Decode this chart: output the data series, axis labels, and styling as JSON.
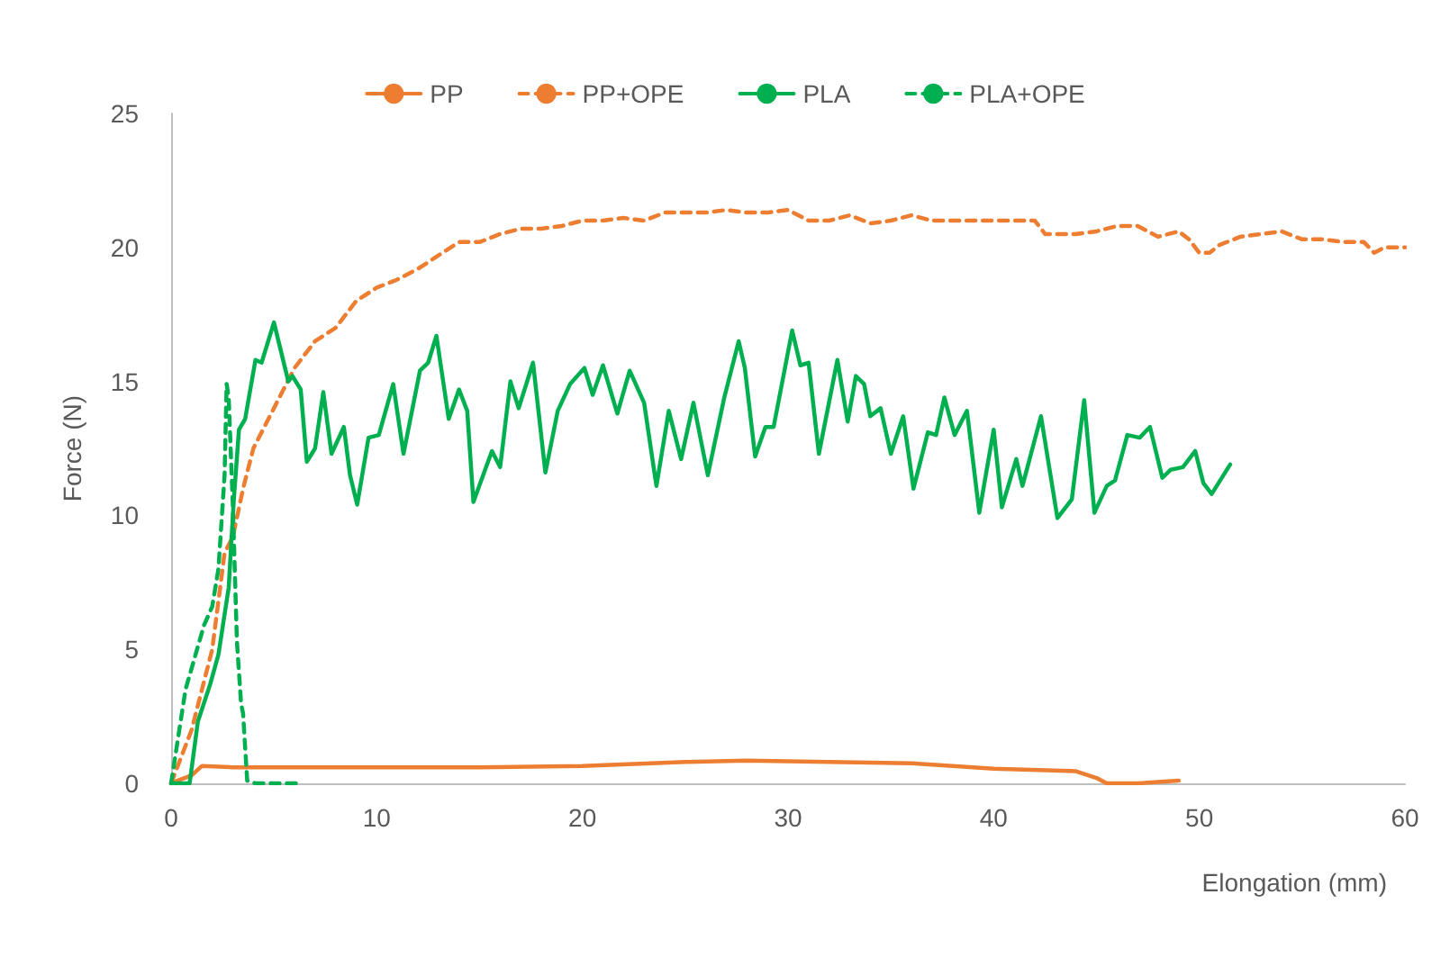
{
  "chart_data": {
    "type": "line",
    "xlabel": "Elongation (mm)",
    "ylabel": "Force (N)",
    "xlim": [
      0,
      60
    ],
    "xticks": [
      0,
      10,
      20,
      30,
      40,
      50,
      60
    ],
    "ylim": [
      0,
      25
    ],
    "yticks": [
      0,
      5,
      10,
      15,
      20,
      25
    ],
    "grid": false,
    "legend": "top",
    "series": [
      {
        "name": "PP",
        "color": "#ed7d31",
        "line_style": "solid",
        "x": [
          0,
          0.3,
          1,
          1.5,
          3,
          5,
          10,
          15,
          20,
          25,
          28,
          32,
          36,
          40,
          44,
          45,
          45.5,
          47,
          49
        ],
        "values": [
          0,
          0.1,
          0.3,
          0.65,
          0.6,
          0.6,
          0.6,
          0.6,
          0.65,
          0.8,
          0.85,
          0.8,
          0.75,
          0.55,
          0.45,
          0.2,
          0,
          0,
          0.1
        ]
      },
      {
        "name": "PP+OPE",
        "color": "#ed7d31",
        "line_style": "dashed",
        "x": [
          0,
          1,
          2,
          2.6,
          3,
          3.5,
          4,
          5,
          6,
          7,
          8,
          9,
          10,
          11,
          12,
          13,
          14,
          15,
          16,
          17,
          18,
          19,
          20,
          21,
          22,
          23,
          24,
          25,
          26,
          27,
          28,
          29,
          30,
          31,
          32,
          33,
          34,
          35,
          36,
          37,
          38,
          39,
          40,
          41,
          42,
          42.5,
          43,
          44,
          45,
          46,
          47,
          48,
          49,
          49.5,
          50,
          50.5,
          51,
          52,
          53,
          54,
          55,
          56,
          57,
          58,
          58.5,
          59,
          60
        ],
        "values": [
          0,
          2,
          5,
          8.6,
          9.2,
          11,
          12.5,
          14,
          15.5,
          16.5,
          17,
          18,
          18.5,
          18.8,
          19.2,
          19.7,
          20.2,
          20.2,
          20.5,
          20.7,
          20.7,
          20.8,
          21,
          21,
          21.1,
          21,
          21.3,
          21.3,
          21.3,
          21.4,
          21.3,
          21.3,
          21.4,
          21,
          21,
          21.2,
          20.9,
          21,
          21.2,
          21,
          21,
          21,
          21,
          21,
          21,
          20.5,
          20.5,
          20.5,
          20.6,
          20.8,
          20.8,
          20.4,
          20.6,
          20.3,
          19.8,
          19.8,
          20.1,
          20.4,
          20.5,
          20.6,
          20.3,
          20.3,
          20.2,
          20.2,
          19.8,
          20,
          20
        ]
      },
      {
        "name": "PLA",
        "color": "#00b050",
        "line_style": "solid",
        "x": [
          0,
          0.9,
          1.3,
          1.9,
          2.3,
          2.8,
          3.05,
          3.3,
          3.6,
          4.1,
          4.4,
          5.0,
          5.7,
          5.9,
          6.3,
          6.6,
          7.0,
          7.4,
          7.8,
          8.4,
          8.7,
          9.05,
          9.6,
          10.1,
          10.8,
          11.3,
          12.1,
          12.5,
          12.9,
          13.5,
          14.0,
          14.4,
          14.7,
          15.6,
          16.0,
          16.5,
          16.9,
          17.6,
          18.2,
          18.8,
          19.4,
          20.1,
          20.5,
          21.0,
          21.7,
          22.3,
          23.0,
          23.6,
          24.2,
          24.8,
          25.4,
          26.1,
          26.9,
          27.6,
          27.9,
          28.4,
          28.9,
          29.3,
          30.2,
          30.6,
          31.0,
          31.5,
          32.4,
          32.9,
          33.3,
          33.7,
          34.0,
          34.5,
          35.0,
          35.6,
          36.1,
          36.8,
          37.2,
          37.6,
          38.1,
          38.7,
          39.3,
          40.0,
          40.4,
          41.1,
          41.4,
          42.3,
          43.1,
          43.8,
          44.4,
          44.9,
          45.5,
          45.9,
          46.5,
          47.1,
          47.6,
          48.2,
          48.6,
          49.2,
          49.8,
          50.2,
          50.6,
          51.5
        ],
        "values": [
          0,
          0,
          2.3,
          3.7,
          4.8,
          7.3,
          10.6,
          13.2,
          13.6,
          15.8,
          15.7,
          17.2,
          15,
          15.2,
          14.7,
          12,
          12.5,
          14.6,
          12.3,
          13.3,
          11.5,
          10.4,
          12.9,
          13,
          14.9,
          12.3,
          15.4,
          15.7,
          16.7,
          13.6,
          14.7,
          13.9,
          10.5,
          12.4,
          11.8,
          15,
          14,
          15.7,
          11.6,
          13.9,
          14.9,
          15.5,
          14.5,
          15.6,
          13.8,
          15.4,
          14.2,
          11.1,
          13.9,
          12.1,
          14.2,
          11.5,
          14.4,
          16.5,
          15.5,
          12.2,
          13.3,
          13.3,
          16.9,
          15.6,
          15.7,
          12.3,
          15.8,
          13.5,
          15.2,
          14.9,
          13.7,
          14,
          12.3,
          13.7,
          11,
          13.1,
          13,
          14.4,
          13,
          13.9,
          10.1,
          13.2,
          10.3,
          12.1,
          11.1,
          13.7,
          9.9,
          10.6,
          14.3,
          10.1,
          11.1,
          11.3,
          13,
          12.9,
          13.3,
          11.4,
          11.7,
          11.8,
          12.4,
          11.2,
          10.8,
          11.9
        ]
      },
      {
        "name": "PLA+OPE",
        "color": "#00b050",
        "line_style": "dashed",
        "x": [
          0,
          0.7,
          1.6,
          2.0,
          2.3,
          2.6,
          2.7,
          2.8,
          3.0,
          3.2,
          3.4,
          3.5,
          3.7,
          4.1,
          6.1
        ],
        "values": [
          0,
          3.5,
          5.9,
          6.6,
          8,
          11.5,
          14.9,
          14.4,
          10.4,
          5.3,
          3,
          2.6,
          0.1,
          0,
          0
        ]
      }
    ]
  }
}
